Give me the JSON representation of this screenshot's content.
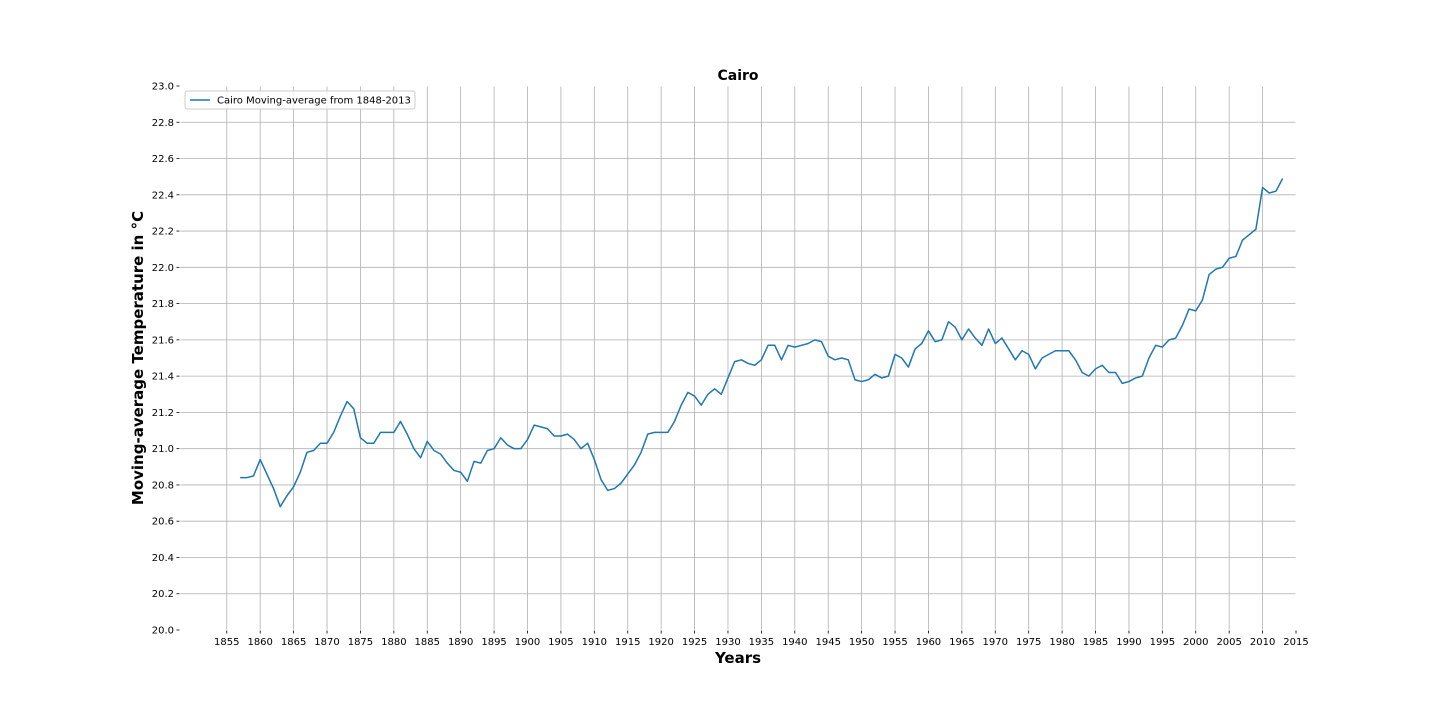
{
  "chart_data": {
    "type": "line",
    "title": "Cairo",
    "xlabel": "Years",
    "ylabel": "Moving-average Temperature in °C",
    "xlim": [
      1848,
      2015
    ],
    "ylim": [
      20.0,
      23.0
    ],
    "xticks": [
      1855,
      1860,
      1865,
      1870,
      1875,
      1880,
      1885,
      1890,
      1895,
      1900,
      1905,
      1910,
      1915,
      1920,
      1925,
      1930,
      1935,
      1940,
      1945,
      1950,
      1955,
      1960,
      1965,
      1970,
      1975,
      1980,
      1985,
      1990,
      1995,
      2000,
      2005,
      2010,
      2015
    ],
    "yticks": [
      "20.0",
      "20.2",
      "20.4",
      "20.6",
      "20.8",
      "21.0",
      "21.2",
      "21.4",
      "21.6",
      "21.8",
      "22.0",
      "22.2",
      "22.4",
      "22.6",
      "22.8",
      "23.0"
    ],
    "grid": true,
    "legend_position": "top-left",
    "series": [
      {
        "name": "Cairo Moving-average from 1848-2013",
        "color": "#1f77b4",
        "x": [
          1857,
          1858,
          1859,
          1860,
          1861,
          1862,
          1863,
          1864,
          1865,
          1866,
          1867,
          1868,
          1869,
          1870,
          1871,
          1872,
          1873,
          1874,
          1875,
          1876,
          1877,
          1878,
          1879,
          1880,
          1881,
          1882,
          1883,
          1884,
          1885,
          1886,
          1887,
          1888,
          1889,
          1890,
          1891,
          1892,
          1893,
          1894,
          1895,
          1896,
          1897,
          1898,
          1899,
          1900,
          1901,
          1902,
          1903,
          1904,
          1905,
          1906,
          1907,
          1908,
          1909,
          1910,
          1911,
          1912,
          1913,
          1914,
          1915,
          1916,
          1917,
          1918,
          1919,
          1920,
          1921,
          1922,
          1923,
          1924,
          1925,
          1926,
          1927,
          1928,
          1929,
          1930,
          1931,
          1932,
          1933,
          1934,
          1935,
          1936,
          1937,
          1938,
          1939,
          1940,
          1941,
          1942,
          1943,
          1944,
          1945,
          1946,
          1947,
          1948,
          1949,
          1950,
          1951,
          1952,
          1953,
          1954,
          1955,
          1956,
          1957,
          1958,
          1959,
          1960,
          1961,
          1962,
          1963,
          1964,
          1965,
          1966,
          1967,
          1968,
          1969,
          1970,
          1971,
          1972,
          1973,
          1974,
          1975,
          1976,
          1977,
          1978,
          1979,
          1980,
          1981,
          1982,
          1983,
          1984,
          1985,
          1986,
          1987,
          1988,
          1989,
          1990,
          1991,
          1992,
          1993,
          1994,
          1995,
          1996,
          1997,
          1998,
          1999,
          2000,
          2001,
          2002,
          2003,
          2004,
          2005,
          2006,
          2007,
          2008,
          2009,
          2010,
          2011,
          2012,
          2013
        ],
        "y": [
          20.84,
          20.84,
          20.85,
          20.94,
          20.86,
          20.78,
          20.68,
          20.74,
          20.79,
          20.87,
          20.98,
          20.99,
          21.03,
          21.03,
          21.09,
          21.18,
          21.26,
          21.22,
          21.06,
          21.03,
          21.03,
          21.09,
          21.09,
          21.09,
          21.15,
          21.08,
          21.0,
          20.95,
          21.04,
          20.99,
          20.97,
          20.92,
          20.88,
          20.87,
          20.82,
          20.93,
          20.92,
          20.99,
          21.0,
          21.06,
          21.02,
          21.0,
          21.0,
          21.05,
          21.13,
          21.12,
          21.11,
          21.07,
          21.07,
          21.08,
          21.05,
          21.0,
          21.03,
          20.94,
          20.83,
          20.77,
          20.78,
          20.81,
          20.86,
          20.91,
          20.98,
          21.08,
          21.09,
          21.09,
          21.09,
          21.15,
          21.24,
          21.31,
          21.29,
          21.24,
          21.3,
          21.33,
          21.3,
          21.39,
          21.48,
          21.49,
          21.47,
          21.46,
          21.49,
          21.57,
          21.57,
          21.49,
          21.57,
          21.56,
          21.57,
          21.58,
          21.6,
          21.59,
          21.51,
          21.49,
          21.5,
          21.49,
          21.38,
          21.37,
          21.38,
          21.41,
          21.39,
          21.4,
          21.52,
          21.5,
          21.45,
          21.55,
          21.58,
          21.65,
          21.59,
          21.6,
          21.7,
          21.67,
          21.6,
          21.66,
          21.61,
          21.57,
          21.66,
          21.58,
          21.61,
          21.55,
          21.49,
          21.54,
          21.52,
          21.44,
          21.5,
          21.52,
          21.54,
          21.54,
          21.54,
          21.49,
          21.42,
          21.4,
          21.44,
          21.46,
          21.42,
          21.42,
          21.36,
          21.37,
          21.39,
          21.4,
          21.5,
          21.57,
          21.56,
          21.6,
          21.61,
          21.68,
          21.77,
          21.76,
          21.82,
          21.96,
          21.99,
          22.0,
          22.05,
          22.06,
          22.15,
          22.18,
          22.21,
          22.44,
          22.41,
          22.42,
          22.49
        ]
      }
    ]
  }
}
